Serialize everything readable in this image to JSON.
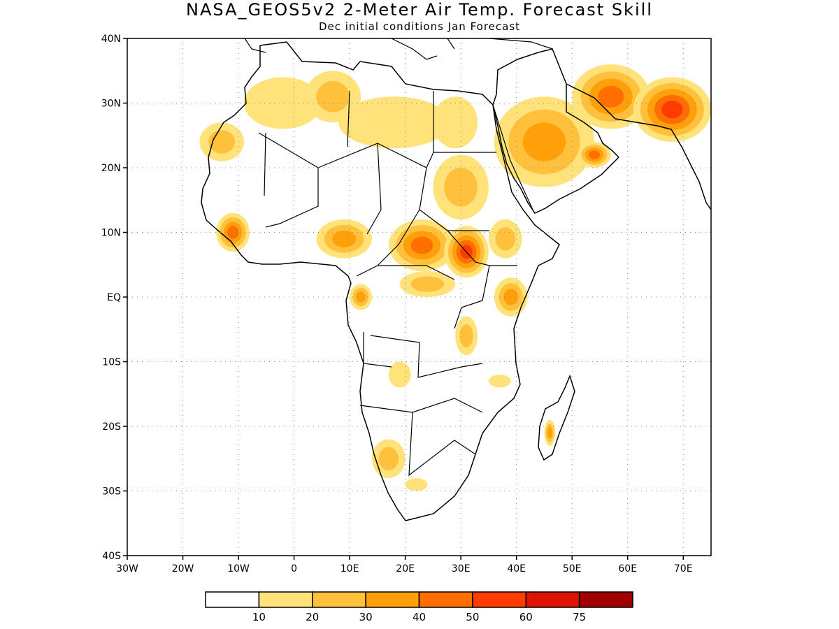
{
  "title": "NASA_GEOS5v2 2-Meter Air Temp. Forecast Skill",
  "subtitle": "Dec initial conditions  Jan Forecast",
  "map": {
    "lon_range": [
      -30,
      75
    ],
    "lat_range": [
      -40,
      40
    ],
    "gridlines": "dotted",
    "lat_ticks": [
      {
        "value": 40,
        "label": "40N"
      },
      {
        "value": 30,
        "label": "30N"
      },
      {
        "value": 20,
        "label": "20N"
      },
      {
        "value": 10,
        "label": "10N"
      },
      {
        "value": 0,
        "label": "EQ"
      },
      {
        "value": -10,
        "label": "10S"
      },
      {
        "value": -20,
        "label": "20S"
      },
      {
        "value": -30,
        "label": "30S"
      },
      {
        "value": -40,
        "label": "40S"
      }
    ],
    "lon_ticks": [
      {
        "value": -30,
        "label": "30W"
      },
      {
        "value": -20,
        "label": "20W"
      },
      {
        "value": -10,
        "label": "10W"
      },
      {
        "value": 0,
        "label": "0"
      },
      {
        "value": 10,
        "label": "10E"
      },
      {
        "value": 20,
        "label": "20E"
      },
      {
        "value": 30,
        "label": "30E"
      },
      {
        "value": 40,
        "label": "40E"
      },
      {
        "value": 50,
        "label": "50E"
      },
      {
        "value": 60,
        "label": "60E"
      },
      {
        "value": 70,
        "label": "70E"
      }
    ]
  },
  "colorbar": {
    "colors": [
      "#ffffff",
      "#ffe27a",
      "#ffc03c",
      "#ffa00a",
      "#ff6e00",
      "#ff3c00",
      "#dc1400",
      "#a00000"
    ],
    "labels": [
      "10",
      "20",
      "30",
      "40",
      "50",
      "60",
      "75"
    ]
  },
  "skill_regions": [
    {
      "name": "morocco-algeria",
      "lon": -2,
      "lat": 30,
      "rx": 7,
      "ry": 4,
      "level": 1
    },
    {
      "name": "algeria-east",
      "lon": 7,
      "lat": 31,
      "rx": 5,
      "ry": 4,
      "level": 2
    },
    {
      "name": "sahara-central",
      "lon": 18,
      "lat": 27,
      "rx": 10,
      "ry": 4,
      "level": 1
    },
    {
      "name": "western-sahara",
      "lon": -13,
      "lat": 24,
      "rx": 4,
      "ry": 3,
      "level": 2
    },
    {
      "name": "egypt",
      "lon": 29,
      "lat": 27,
      "rx": 4,
      "ry": 4,
      "level": 1
    },
    {
      "name": "sudan",
      "lon": 30,
      "lat": 17,
      "rx": 5,
      "ry": 5,
      "level": 2
    },
    {
      "name": "arabia",
      "lon": 45,
      "lat": 24,
      "rx": 9,
      "ry": 7,
      "level": 3
    },
    {
      "name": "oman-uae",
      "lon": 54,
      "lat": 22,
      "rx": 3,
      "ry": 2,
      "level": 4
    },
    {
      "name": "iran",
      "lon": 57,
      "lat": 31,
      "rx": 7,
      "ry": 5,
      "level": 4
    },
    {
      "name": "pakistan-india",
      "lon": 68,
      "lat": 29,
      "rx": 7,
      "ry": 5,
      "level": 5
    },
    {
      "name": "west-africa-coast",
      "lon": -11,
      "lat": 10,
      "rx": 3,
      "ry": 3,
      "level": 4
    },
    {
      "name": "nigeria",
      "lon": 9,
      "lat": 9,
      "rx": 5,
      "ry": 3,
      "level": 3
    },
    {
      "name": "central-african-rep",
      "lon": 23,
      "lat": 8,
      "rx": 6,
      "ry": 4,
      "level": 4
    },
    {
      "name": "south-sudan",
      "lon": 31,
      "lat": 7,
      "rx": 4,
      "ry": 4,
      "level": 5
    },
    {
      "name": "ethiopia",
      "lon": 38,
      "lat": 9,
      "rx": 3,
      "ry": 3,
      "level": 2
    },
    {
      "name": "congo-north",
      "lon": 24,
      "lat": 2,
      "rx": 5,
      "ry": 2,
      "level": 2
    },
    {
      "name": "gabon",
      "lon": 12,
      "lat": 0,
      "rx": 2,
      "ry": 2,
      "level": 3
    },
    {
      "name": "kenya",
      "lon": 39,
      "lat": 0,
      "rx": 3,
      "ry": 3,
      "level": 3
    },
    {
      "name": "tanzania-west",
      "lon": 31,
      "lat": -6,
      "rx": 2,
      "ry": 3,
      "level": 2
    },
    {
      "name": "angola",
      "lon": 19,
      "lat": -12,
      "rx": 2,
      "ry": 2,
      "level": 1
    },
    {
      "name": "mozambique",
      "lon": 37,
      "lat": -13,
      "rx": 2,
      "ry": 1,
      "level": 1
    },
    {
      "name": "namibia",
      "lon": 17,
      "lat": -25,
      "rx": 3,
      "ry": 3,
      "level": 2
    },
    {
      "name": "madagascar",
      "lon": 46,
      "lat": -21,
      "rx": 1,
      "ry": 2,
      "level": 3
    },
    {
      "name": "south-africa",
      "lon": 22,
      "lat": -29,
      "rx": 2,
      "ry": 1,
      "level": 1
    }
  ]
}
